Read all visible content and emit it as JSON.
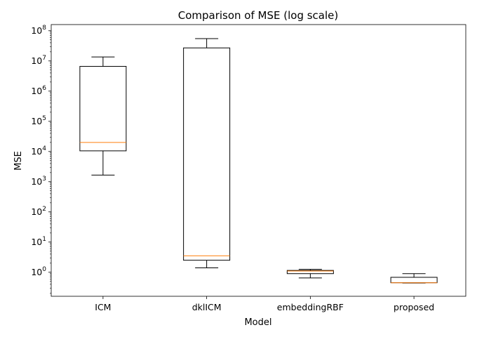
{
  "chart_data": {
    "type": "box",
    "title": "Comparison of MSE (log scale)",
    "xlabel": "Model",
    "ylabel": "MSE",
    "yscale": "log",
    "ylim": [
      0.16,
      160000000
    ],
    "yticks": [
      {
        "value": 1,
        "base": "10",
        "exp": "0"
      },
      {
        "value": 10,
        "base": "10",
        "exp": "1"
      },
      {
        "value": 100,
        "base": "10",
        "exp": "2"
      },
      {
        "value": 1000,
        "base": "10",
        "exp": "3"
      },
      {
        "value": 10000,
        "base": "10",
        "exp": "4"
      },
      {
        "value": 100000,
        "base": "10",
        "exp": "5"
      },
      {
        "value": 1000000,
        "base": "10",
        "exp": "6"
      },
      {
        "value": 10000000,
        "base": "10",
        "exp": "7"
      },
      {
        "value": 100000000,
        "base": "10",
        "exp": "8"
      }
    ],
    "grid": false,
    "categories": [
      "ICM",
      "dklICM",
      "embeddingRBF",
      "proposed"
    ],
    "boxes": [
      {
        "whisker_low": 1650,
        "q1": 10500,
        "median": 20000,
        "q3": 6600000,
        "whisker_high": 13500000
      },
      {
        "whisker_low": 1.4,
        "q1": 2.5,
        "median": 3.5,
        "q3": 27000000,
        "whisker_high": 55000000
      },
      {
        "whisker_low": 0.65,
        "q1": 0.9,
        "median": 1.1,
        "q3": 1.15,
        "whisker_high": 1.25
      },
      {
        "whisker_low": 0.44,
        "q1": 0.45,
        "median": 0.45,
        "q3": 0.68,
        "whisker_high": 0.9
      }
    ],
    "colors": {
      "box": "#000000",
      "median": "#ff7f0e",
      "axes": "#000000"
    }
  }
}
